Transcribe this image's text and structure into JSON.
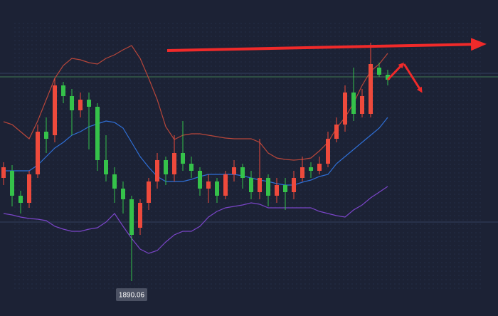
{
  "chart_data": {
    "type": "candlestick",
    "categories": [
      null,
      null,
      null,
      null,
      null,
      null,
      null,
      null,
      null,
      null,
      null,
      null,
      null,
      null,
      null,
      null,
      null,
      null,
      null,
      null,
      null,
      null,
      null,
      null,
      null,
      null,
      null,
      null,
      null,
      null,
      null,
      null,
      null,
      null,
      null,
      null,
      null,
      null,
      null,
      null,
      null,
      null,
      null,
      null,
      null,
      null
    ],
    "open": [
      1904.56,
      1905.56,
      1902.06,
      1901.06,
      1905.06,
      1911.06,
      1910.56,
      1917.56,
      1916.06,
      1914.06,
      1915.56,
      1914.56,
      1907.06,
      1905.06,
      1903.06,
      1901.56,
      1897.56,
      1901.06,
      1904.06,
      1907.06,
      1905.06,
      1908.06,
      1906.56,
      1905.56,
      1903.06,
      1904.06,
      1902.06,
      1905.06,
      1906.06,
      1904.56,
      1902.56,
      1904.56,
      1902.06,
      1903.56,
      1902.56,
      1904.56,
      1906.06,
      1905.56,
      1906.56,
      1910.06,
      1912.06,
      1916.56,
      1913.56,
      1913.56,
      1920.06,
      1919.06
    ],
    "high": [
      1906.76,
      1906.36,
      1902.76,
      1905.56,
      1912.06,
      1913.06,
      1918.56,
      1918.06,
      1917.06,
      1916.56,
      1916.56,
      1915.06,
      1910.56,
      1906.06,
      1904.06,
      1902.06,
      1901.56,
      1904.56,
      1908.06,
      1907.56,
      1910.56,
      1912.56,
      1907.56,
      1906.06,
      1905.06,
      1904.56,
      1905.56,
      1907.06,
      1906.56,
      1905.56,
      1910.06,
      1905.06,
      1904.56,
      1904.56,
      1905.56,
      1907.56,
      1906.76,
      1907.56,
      1911.06,
      1913.06,
      1917.56,
      1920.06,
      1917.06,
      1923.56,
      1920.76,
      1919.76
    ],
    "low": [
      1903.56,
      1900.56,
      1899.56,
      1900.36,
      1904.56,
      1908.06,
      1909.56,
      1915.06,
      1910.56,
      1913.06,
      1908.56,
      1905.56,
      1904.06,
      1901.06,
      1899.56,
      1890.06,
      1896.56,
      1900.06,
      1903.06,
      1903.56,
      1904.06,
      1905.56,
      1904.56,
      1902.06,
      1901.06,
      1901.06,
      1901.56,
      1904.06,
      1903.06,
      1901.56,
      1901.56,
      1900.56,
      1901.06,
      1900.06,
      1901.56,
      1904.06,
      1904.56,
      1905.06,
      1906.06,
      1909.56,
      1911.06,
      1912.56,
      1913.06,
      1913.06,
      1918.76,
      1917.56
    ],
    "close": [
      1906.06,
      1902.06,
      1901.06,
      1905.06,
      1911.06,
      1910.06,
      1917.56,
      1916.06,
      1914.06,
      1915.56,
      1914.56,
      1907.06,
      1905.06,
      1903.06,
      1901.56,
      1896.56,
      1901.06,
      1904.06,
      1907.06,
      1905.06,
      1908.06,
      1906.56,
      1905.56,
      1903.06,
      1904.06,
      1902.06,
      1905.06,
      1906.06,
      1904.56,
      1902.56,
      1904.56,
      1902.06,
      1903.56,
      1902.56,
      1904.56,
      1906.06,
      1905.56,
      1906.56,
      1910.06,
      1912.06,
      1916.56,
      1913.56,
      1916.06,
      1920.56,
      1919.06,
      1918.36
    ],
    "up_color": "#ee4a3c",
    "down_color": "#35c24a",
    "ylim": [
      1885.16,
      1929.56
    ],
    "overlays": [
      {
        "color": "#b8463a",
        "values": [
          1912.46,
          1912.06,
          1911.06,
          1910.06,
          1912.56,
          1915.56,
          1918.56,
          1920.36,
          1921.36,
          1921.16,
          1920.76,
          1920.56,
          1921.36,
          1921.86,
          1922.56,
          1923.16,
          1921.36,
          1918.56,
          1915.56,
          1911.76,
          1909.96,
          1910.56,
          1910.76,
          1910.76,
          1910.56,
          1910.36,
          1910.16,
          1910.06,
          1910.06,
          1910.06,
          1909.56,
          1908.06,
          1907.36,
          1907.16,
          1907.06,
          1907.16,
          1907.36,
          1908.36,
          1909.56,
          1911.56,
          1913.06,
          1915.06,
          1917.56,
          1919.56,
          1920.56,
          1922.06
        ]
      },
      {
        "color": "#2f6fd6",
        "values": [
          1905.56,
          1905.56,
          1905.56,
          1905.56,
          1906.36,
          1907.56,
          1908.76,
          1909.56,
          1910.56,
          1911.06,
          1911.76,
          1912.16,
          1912.56,
          1912.36,
          1911.56,
          1909.56,
          1907.56,
          1906.06,
          1904.76,
          1904.06,
          1904.06,
          1904.06,
          1904.36,
          1904.76,
          1905.06,
          1905.06,
          1905.06,
          1905.06,
          1904.86,
          1904.56,
          1904.26,
          1904.06,
          1903.76,
          1903.56,
          1903.56,
          1903.96,
          1904.26,
          1904.76,
          1905.06,
          1906.56,
          1907.56,
          1908.56,
          1909.56,
          1910.56,
          1911.56,
          1913.06
        ]
      },
      {
        "color": "#7a45c8",
        "values": [
          1899.56,
          1899.36,
          1899.06,
          1898.86,
          1898.76,
          1898.56,
          1897.76,
          1897.36,
          1897.06,
          1897.06,
          1897.36,
          1897.56,
          1898.36,
          1899.56,
          1897.76,
          1896.06,
          1894.56,
          1893.96,
          1894.36,
          1895.56,
          1896.56,
          1897.06,
          1897.06,
          1897.76,
          1899.06,
          1899.86,
          1900.36,
          1900.56,
          1900.76,
          1901.06,
          1900.86,
          1900.36,
          1900.36,
          1900.36,
          1900.36,
          1900.36,
          1900.36,
          1899.86,
          1899.56,
          1899.26,
          1899.06,
          1900.06,
          1900.76,
          1901.76,
          1902.56,
          1903.36
        ]
      }
    ]
  }
}
